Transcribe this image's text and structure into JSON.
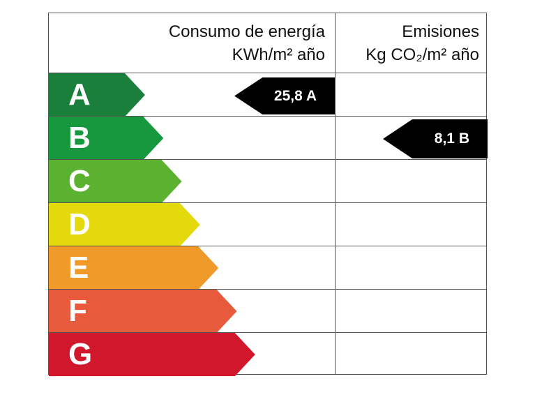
{
  "header": {
    "energy_title": "Consumo de energía",
    "energy_unit": "KWh/m² año",
    "emissions_title": "Emisiones",
    "emissions_unit": "Kg CO₂/m² año"
  },
  "classes": [
    {
      "letter": "A",
      "color": "#1b7f3c"
    },
    {
      "letter": "B",
      "color": "#17983f"
    },
    {
      "letter": "C",
      "color": "#5bb231"
    },
    {
      "letter": "D",
      "color": "#e3d90d"
    },
    {
      "letter": "E",
      "color": "#f09a2a"
    },
    {
      "letter": "F",
      "color": "#e75a3c"
    },
    {
      "letter": "G",
      "color": "#d0172b"
    }
  ],
  "energy_rating": {
    "value": "25,8 A",
    "class": "A"
  },
  "emissions_rating": {
    "value": "8,1 B",
    "class": "B"
  }
}
